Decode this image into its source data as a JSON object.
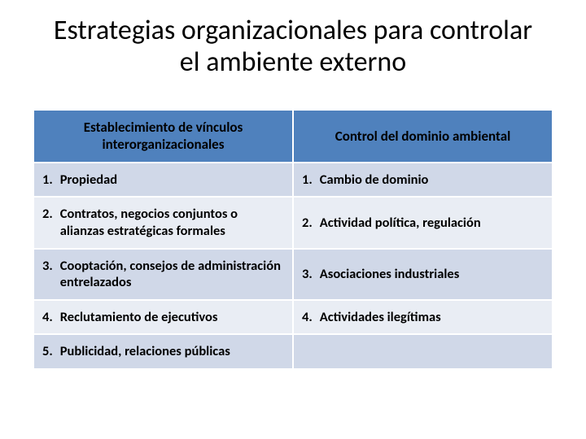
{
  "title": "Estrategias organizacionales para controlar el ambiente externo",
  "table": {
    "header_bg": "#4f81bd",
    "header_color": "#000000",
    "row_alt_a": "#d0d8e8",
    "row_alt_b": "#e9edf4",
    "border_color": "#ffffff",
    "columns": [
      "Establecimiento de vínculos interorganizacionales",
      "Control del dominio ambiental"
    ],
    "rows": [
      {
        "left_num": "1.",
        "left_text": "Propiedad",
        "right_num": "1.",
        "right_text": "Cambio de dominio"
      },
      {
        "left_num": "2.",
        "left_text": "Contratos, negocios conjuntos o alianzas estratégicas formales",
        "right_num": "2.",
        "right_text": "Actividad política, regulación"
      },
      {
        "left_num": "3.",
        "left_text": "Cooptación, consejos de administración entrelazados",
        "right_num": "3.",
        "right_text": "Asociaciones industriales"
      },
      {
        "left_num": "4.",
        "left_text": "Reclutamiento de ejecutivos",
        "right_num": "4.",
        "right_text": "Actividades ilegítimas"
      },
      {
        "left_num": "5.",
        "left_text": "Publicidad, relaciones públicas",
        "right_num": "",
        "right_text": ""
      }
    ]
  }
}
